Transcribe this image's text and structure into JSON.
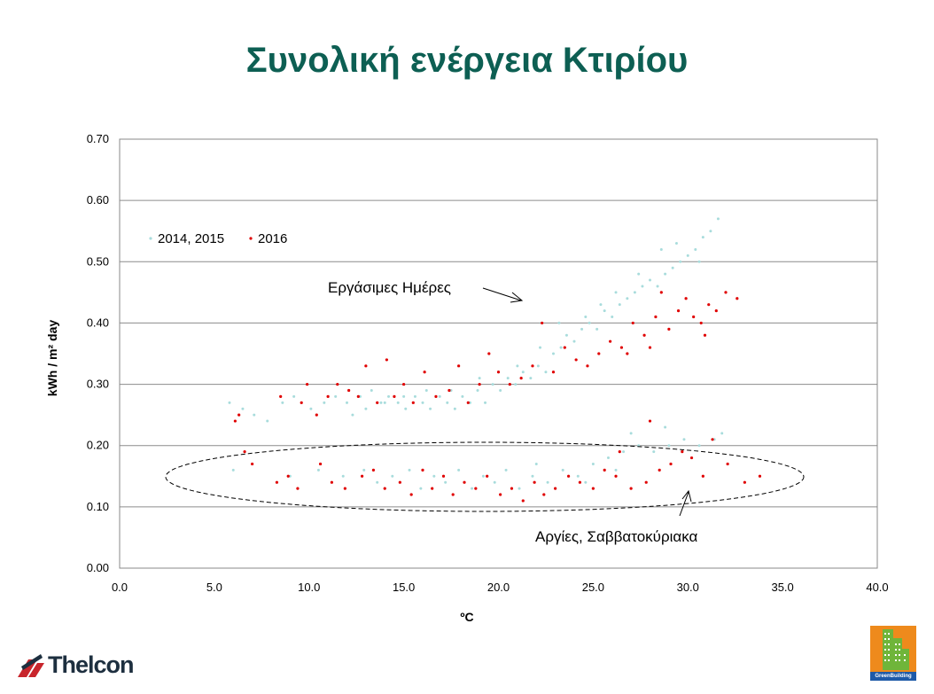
{
  "title": "Συνολική ενέργεια Κτιρίου",
  "colors": {
    "title": "#0d5f53",
    "series_2014_2015": "#a8dcdc",
    "series_2016": "#e00000"
  },
  "logos": {
    "left": "Thelcon",
    "right": "GreenBuilding"
  },
  "chart_data": {
    "type": "scatter",
    "xlabel": "ºC",
    "ylabel": "kWh / m² day",
    "xlim": [
      0,
      40
    ],
    "ylim": [
      0,
      0.7
    ],
    "x_ticks": [
      "0.0",
      "5.0",
      "10.0",
      "15.0",
      "20.0",
      "25.0",
      "30.0",
      "35.0",
      "40.0"
    ],
    "y_ticks": [
      "0.00",
      "0.10",
      "0.20",
      "0.30",
      "0.40",
      "0.50",
      "0.60",
      "0.70"
    ],
    "grid": "horizontal",
    "legend_position": "upper-left",
    "annotations": [
      "Εργάσιμες Ημέρες",
      "Αργίες, Σαββατοκύριακα"
    ],
    "series": [
      {
        "name": "2014, 2015",
        "color": "#a8dcdc",
        "points": [
          [
            5.8,
            0.27
          ],
          [
            6.5,
            0.26
          ],
          [
            7.1,
            0.25
          ],
          [
            7.8,
            0.24
          ],
          [
            8.6,
            0.27
          ],
          [
            9.2,
            0.28
          ],
          [
            10.1,
            0.26
          ],
          [
            10.8,
            0.27
          ],
          [
            11.4,
            0.28
          ],
          [
            12.0,
            0.27
          ],
          [
            12.7,
            0.28
          ],
          [
            13.3,
            0.29
          ],
          [
            13.8,
            0.27
          ],
          [
            14.2,
            0.28
          ],
          [
            14.7,
            0.27
          ],
          [
            15.1,
            0.26
          ],
          [
            15.6,
            0.28
          ],
          [
            16.0,
            0.27
          ],
          [
            16.4,
            0.26
          ],
          [
            16.9,
            0.28
          ],
          [
            17.3,
            0.27
          ],
          [
            17.7,
            0.26
          ],
          [
            18.1,
            0.28
          ],
          [
            18.5,
            0.27
          ],
          [
            18.9,
            0.29
          ],
          [
            19.3,
            0.27
          ],
          [
            19.7,
            0.3
          ],
          [
            20.1,
            0.29
          ],
          [
            20.5,
            0.31
          ],
          [
            20.9,
            0.3
          ],
          [
            21.3,
            0.32
          ],
          [
            21.7,
            0.31
          ],
          [
            22.1,
            0.33
          ],
          [
            22.5,
            0.32
          ],
          [
            22.9,
            0.35
          ],
          [
            23.3,
            0.36
          ],
          [
            23.6,
            0.38
          ],
          [
            24.0,
            0.37
          ],
          [
            24.4,
            0.39
          ],
          [
            24.8,
            0.4
          ],
          [
            25.2,
            0.39
          ],
          [
            25.6,
            0.42
          ],
          [
            26.0,
            0.41
          ],
          [
            26.4,
            0.43
          ],
          [
            26.8,
            0.44
          ],
          [
            27.2,
            0.45
          ],
          [
            27.6,
            0.46
          ],
          [
            28.0,
            0.47
          ],
          [
            28.4,
            0.46
          ],
          [
            28.8,
            0.48
          ],
          [
            29.2,
            0.49
          ],
          [
            29.6,
            0.5
          ],
          [
            30.0,
            0.51
          ],
          [
            30.4,
            0.52
          ],
          [
            30.8,
            0.54
          ],
          [
            31.2,
            0.55
          ],
          [
            31.6,
            0.57
          ],
          [
            29.4,
            0.53
          ],
          [
            30.6,
            0.5
          ],
          [
            28.6,
            0.52
          ],
          [
            27.4,
            0.48
          ],
          [
            26.2,
            0.45
          ],
          [
            25.4,
            0.43
          ],
          [
            24.6,
            0.41
          ],
          [
            23.2,
            0.4
          ],
          [
            22.2,
            0.36
          ],
          [
            21.0,
            0.33
          ],
          [
            20.0,
            0.32
          ],
          [
            19.0,
            0.31
          ],
          [
            17.5,
            0.29
          ],
          [
            16.2,
            0.29
          ],
          [
            15.0,
            0.28
          ],
          [
            14.0,
            0.27
          ],
          [
            13.0,
            0.26
          ],
          [
            12.3,
            0.25
          ],
          [
            6.0,
            0.16
          ],
          [
            9.0,
            0.15
          ],
          [
            10.5,
            0.16
          ],
          [
            11.8,
            0.15
          ],
          [
            12.9,
            0.16
          ],
          [
            13.6,
            0.14
          ],
          [
            14.4,
            0.15
          ],
          [
            15.3,
            0.16
          ],
          [
            15.9,
            0.13
          ],
          [
            16.6,
            0.15
          ],
          [
            17.2,
            0.14
          ],
          [
            17.9,
            0.16
          ],
          [
            18.6,
            0.13
          ],
          [
            19.2,
            0.15
          ],
          [
            19.8,
            0.14
          ],
          [
            20.4,
            0.16
          ],
          [
            21.1,
            0.13
          ],
          [
            21.8,
            0.15
          ],
          [
            22.6,
            0.14
          ],
          [
            23.4,
            0.16
          ],
          [
            24.2,
            0.15
          ],
          [
            25.0,
            0.17
          ],
          [
            25.8,
            0.18
          ],
          [
            26.6,
            0.19
          ],
          [
            27.4,
            0.2
          ],
          [
            28.2,
            0.19
          ],
          [
            29.0,
            0.2
          ],
          [
            29.8,
            0.21
          ],
          [
            30.6,
            0.2
          ],
          [
            31.4,
            0.21
          ],
          [
            31.8,
            0.22
          ],
          [
            27.0,
            0.22
          ],
          [
            28.8,
            0.23
          ],
          [
            26.2,
            0.16
          ],
          [
            24.6,
            0.14
          ],
          [
            23.0,
            0.13
          ],
          [
            22.0,
            0.17
          ]
        ]
      },
      {
        "name": "2016",
        "color": "#e00000",
        "points": [
          [
            6.1,
            0.24
          ],
          [
            6.3,
            0.25
          ],
          [
            8.5,
            0.28
          ],
          [
            9.6,
            0.27
          ],
          [
            9.9,
            0.3
          ],
          [
            10.4,
            0.25
          ],
          [
            11.0,
            0.28
          ],
          [
            11.5,
            0.3
          ],
          [
            12.1,
            0.29
          ],
          [
            12.6,
            0.28
          ],
          [
            13.0,
            0.33
          ],
          [
            13.6,
            0.27
          ],
          [
            14.1,
            0.34
          ],
          [
            14.5,
            0.28
          ],
          [
            15.0,
            0.3
          ],
          [
            15.5,
            0.27
          ],
          [
            16.1,
            0.32
          ],
          [
            16.7,
            0.28
          ],
          [
            17.4,
            0.29
          ],
          [
            17.9,
            0.33
          ],
          [
            18.4,
            0.27
          ],
          [
            19.0,
            0.3
          ],
          [
            19.5,
            0.35
          ],
          [
            20.0,
            0.32
          ],
          [
            20.6,
            0.3
          ],
          [
            21.2,
            0.31
          ],
          [
            21.8,
            0.33
          ],
          [
            22.3,
            0.4
          ],
          [
            22.9,
            0.32
          ],
          [
            23.5,
            0.36
          ],
          [
            24.1,
            0.34
          ],
          [
            24.7,
            0.33
          ],
          [
            25.3,
            0.35
          ],
          [
            25.9,
            0.37
          ],
          [
            26.5,
            0.36
          ],
          [
            27.1,
            0.4
          ],
          [
            27.7,
            0.38
          ],
          [
            28.3,
            0.41
          ],
          [
            28.6,
            0.45
          ],
          [
            29.0,
            0.39
          ],
          [
            29.5,
            0.42
          ],
          [
            29.9,
            0.44
          ],
          [
            30.3,
            0.41
          ],
          [
            30.7,
            0.4
          ],
          [
            31.1,
            0.43
          ],
          [
            31.5,
            0.42
          ],
          [
            32.0,
            0.45
          ],
          [
            32.6,
            0.44
          ],
          [
            28.0,
            0.36
          ],
          [
            26.8,
            0.35
          ],
          [
            30.9,
            0.38
          ],
          [
            6.6,
            0.19
          ],
          [
            7.0,
            0.17
          ],
          [
            8.3,
            0.14
          ],
          [
            8.9,
            0.15
          ],
          [
            9.4,
            0.13
          ],
          [
            10.6,
            0.17
          ],
          [
            11.2,
            0.14
          ],
          [
            11.9,
            0.13
          ],
          [
            12.8,
            0.15
          ],
          [
            13.4,
            0.16
          ],
          [
            14.0,
            0.13
          ],
          [
            14.8,
            0.14
          ],
          [
            15.4,
            0.12
          ],
          [
            16.0,
            0.16
          ],
          [
            16.5,
            0.13
          ],
          [
            17.1,
            0.15
          ],
          [
            17.6,
            0.12
          ],
          [
            18.2,
            0.14
          ],
          [
            18.8,
            0.13
          ],
          [
            19.4,
            0.15
          ],
          [
            20.1,
            0.12
          ],
          [
            20.7,
            0.13
          ],
          [
            21.3,
            0.11
          ],
          [
            21.9,
            0.14
          ],
          [
            22.4,
            0.12
          ],
          [
            23.0,
            0.13
          ],
          [
            23.7,
            0.15
          ],
          [
            24.3,
            0.14
          ],
          [
            25.0,
            0.13
          ],
          [
            25.6,
            0.16
          ],
          [
            26.2,
            0.15
          ],
          [
            27.0,
            0.13
          ],
          [
            27.8,
            0.14
          ],
          [
            28.5,
            0.16
          ],
          [
            29.1,
            0.17
          ],
          [
            29.7,
            0.19
          ],
          [
            30.2,
            0.18
          ],
          [
            30.8,
            0.15
          ],
          [
            31.3,
            0.21
          ],
          [
            32.1,
            0.17
          ],
          [
            33.0,
            0.14
          ],
          [
            33.8,
            0.15
          ],
          [
            26.4,
            0.19
          ],
          [
            28.0,
            0.24
          ]
        ]
      }
    ]
  }
}
